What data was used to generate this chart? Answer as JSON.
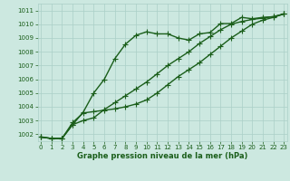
{
  "line1": [
    1001.8,
    1001.7,
    1001.7,
    1002.7,
    1003.0,
    1003.2,
    1003.8,
    1004.3,
    1004.8,
    1005.3,
    1005.8,
    1006.4,
    1007.0,
    1007.5,
    1008.0,
    1008.6,
    1009.1,
    1009.6,
    1010.0,
    1010.2,
    1010.35,
    1010.45,
    1010.55,
    1010.75
  ],
  "line2": [
    1001.8,
    1001.7,
    1001.7,
    1002.7,
    1003.6,
    1005.0,
    1006.0,
    1007.5,
    1008.55,
    1009.2,
    1009.45,
    1009.3,
    1009.3,
    1009.0,
    1008.85,
    1009.3,
    1009.4,
    1010.05,
    1010.05,
    1010.5,
    1010.4,
    1010.5,
    1010.55,
    1010.75
  ],
  "line3": [
    1001.8,
    1001.7,
    1001.7,
    1002.85,
    1003.55,
    1003.65,
    1003.75,
    1003.85,
    1004.0,
    1004.2,
    1004.5,
    1005.0,
    1005.6,
    1006.2,
    1006.7,
    1007.2,
    1007.8,
    1008.4,
    1009.0,
    1009.5,
    1010.0,
    1010.3,
    1010.5,
    1010.75
  ],
  "x": [
    0,
    1,
    2,
    3,
    4,
    5,
    6,
    7,
    8,
    9,
    10,
    11,
    12,
    13,
    14,
    15,
    16,
    17,
    18,
    19,
    20,
    21,
    22,
    23
  ],
  "xlim": [
    -0.3,
    23.3
  ],
  "ylim": [
    1001.5,
    1011.5
  ],
  "yticks": [
    1002,
    1003,
    1004,
    1005,
    1006,
    1007,
    1008,
    1009,
    1010,
    1011
  ],
  "xticks": [
    0,
    1,
    2,
    3,
    4,
    5,
    6,
    7,
    8,
    9,
    10,
    11,
    12,
    13,
    14,
    15,
    16,
    17,
    18,
    19,
    20,
    21,
    22,
    23
  ],
  "line_color": "#1a5e1a",
  "bg_color": "#cce8e0",
  "grid_color": "#aacfc7",
  "xlabel": "Graphe pression niveau de la mer (hPa)",
  "xlabel_color": "#1a5e1a",
  "tick_color": "#1a5e1a",
  "marker": "+",
  "markersize": 4,
  "linewidth": 1.0,
  "tick_fontsize": 5.0,
  "xlabel_fontsize": 6.0
}
